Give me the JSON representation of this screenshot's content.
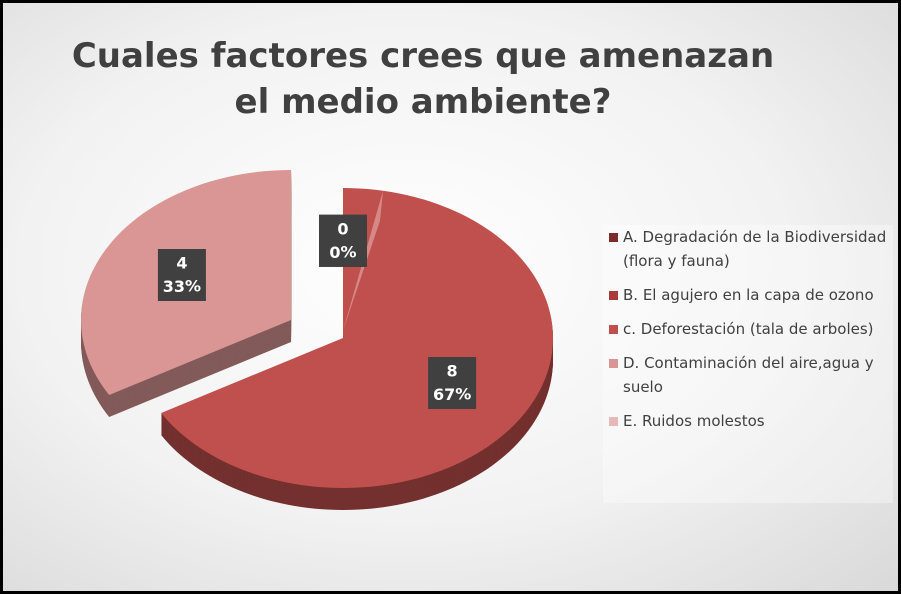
{
  "chart_data": {
    "type": "pie",
    "title": "Cuales factores crees que amenazan el medio ambiente?",
    "categories": [
      "A. Degradación de la Biodiversidad (flora y fauna)",
      "B. El agujero en la capa de ozono",
      "c. Deforestación (tala de arboles)",
      "D. Contaminación del aire,agua y suelo",
      "E. Ruidos molestos"
    ],
    "values": [
      0,
      0,
      8,
      4,
      0
    ],
    "percents": [
      0,
      0,
      67,
      33,
      0
    ],
    "colors": [
      "#7b2c2a",
      "#a83c3a",
      "#c0504d",
      "#d99694",
      "#e6b9b8"
    ],
    "legend": "right"
  }
}
